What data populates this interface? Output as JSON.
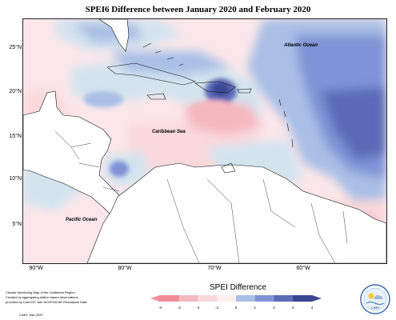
{
  "title": "SPEI6 Difference between January 2020 and February 2020",
  "lat_ticks": [
    "25°N",
    "20°N",
    "15°N",
    "10°N",
    "5°N"
  ],
  "lon_ticks": [
    "90°W",
    "80°W",
    "70°W",
    "60°W"
  ],
  "map_labels": {
    "atlantic": "Atlantic Ocean",
    "caribbean": "Caribbean Sea",
    "pacific": "Pacific Ocean"
  },
  "credits_lines": [
    "Climate Monitoring Map of the Caribbean Region.",
    "Created by aggregating station based observations,",
    "provided by CariCOF, with NCEP/NCAR Reanalysis Data."
  ],
  "date_stamp": "CIMH: Mar-2020",
  "legend": {
    "title": "SPEI Difference",
    "ticks": [
      "-4",
      "-3",
      "-2",
      "-1",
      "0",
      "1",
      "2",
      "3",
      "4"
    ],
    "colors": [
      "#f08d97",
      "#f6b8bf",
      "#fad9dc",
      "#fdeef0",
      "#d3e4ef",
      "#a9bfe6",
      "#7f93d6",
      "#5a6bb8",
      "#3b4694"
    ]
  },
  "logo_text": "CIMH",
  "map_extent": {
    "lon": [
      -93.5,
      -52
    ],
    "lat": [
      0,
      28
    ]
  }
}
